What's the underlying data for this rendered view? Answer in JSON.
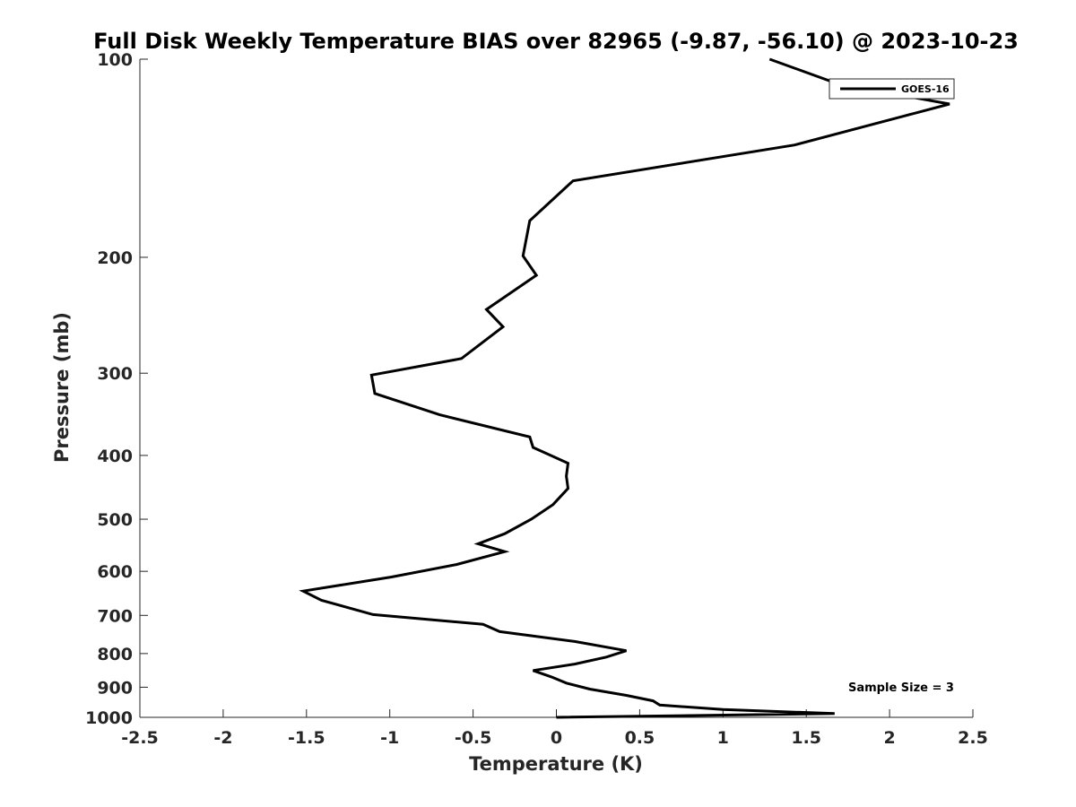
{
  "chart_data": {
    "type": "line",
    "title": "Full Disk Weekly Temperature BIAS over 82965 (-9.87, -56.10) @ 2023-10-23",
    "xlabel": "Temperature (K)",
    "ylabel": "Pressure (mb)",
    "xlim": [
      -2.5,
      2.5
    ],
    "ylim": [
      100,
      1000
    ],
    "y_scale": "log",
    "y_reversed": true,
    "x_ticks": [
      "-2.5",
      "-2",
      "-1.5",
      "-1",
      "-0.5",
      "0",
      "0.5",
      "1",
      "1.5",
      "2",
      "2.5"
    ],
    "y_ticks": [
      "100",
      "200",
      "300",
      "400",
      "500",
      "600",
      "700",
      "800",
      "900",
      "1000"
    ],
    "grid": false,
    "legend": {
      "placement": "top-right",
      "entries": [
        "GOES-16"
      ]
    },
    "annotation": "Sample Size = 3",
    "color": "#000000",
    "series": [
      {
        "name": "GOES-16",
        "points": [
          [
            1.28,
            100
          ],
          [
            1.69,
            109
          ],
          [
            2.36,
            117
          ],
          [
            1.43,
            135
          ],
          [
            0.1,
            153
          ],
          [
            -0.16,
            176
          ],
          [
            -0.2,
            199
          ],
          [
            -0.12,
            213
          ],
          [
            -0.42,
            240
          ],
          [
            -0.32,
            255
          ],
          [
            -0.57,
            285
          ],
          [
            -1.11,
            302
          ],
          [
            -1.09,
            322
          ],
          [
            -0.7,
            347
          ],
          [
            -0.16,
            375
          ],
          [
            -0.14,
            389
          ],
          [
            0.07,
            411
          ],
          [
            0.06,
            430
          ],
          [
            0.07,
            449
          ],
          [
            -0.02,
            475
          ],
          [
            -0.15,
            500
          ],
          [
            -0.31,
            526
          ],
          [
            -0.47,
            545
          ],
          [
            -0.31,
            560
          ],
          [
            -0.6,
            586
          ],
          [
            -0.99,
            612
          ],
          [
            -1.52,
            643
          ],
          [
            -1.41,
            664
          ],
          [
            -1.1,
            698
          ],
          [
            -0.44,
            722
          ],
          [
            -0.34,
            741
          ],
          [
            0.11,
            767
          ],
          [
            0.42,
            792
          ],
          [
            0.3,
            810
          ],
          [
            0.11,
            830
          ],
          [
            -0.14,
            849
          ],
          [
            -0.03,
            868
          ],
          [
            0.06,
            887
          ],
          [
            0.2,
            906
          ],
          [
            0.42,
            926
          ],
          [
            0.58,
            944
          ],
          [
            0.62,
            958
          ],
          [
            1.0,
            973
          ],
          [
            1.67,
            987
          ],
          [
            0.0,
            1000
          ]
        ]
      }
    ]
  }
}
